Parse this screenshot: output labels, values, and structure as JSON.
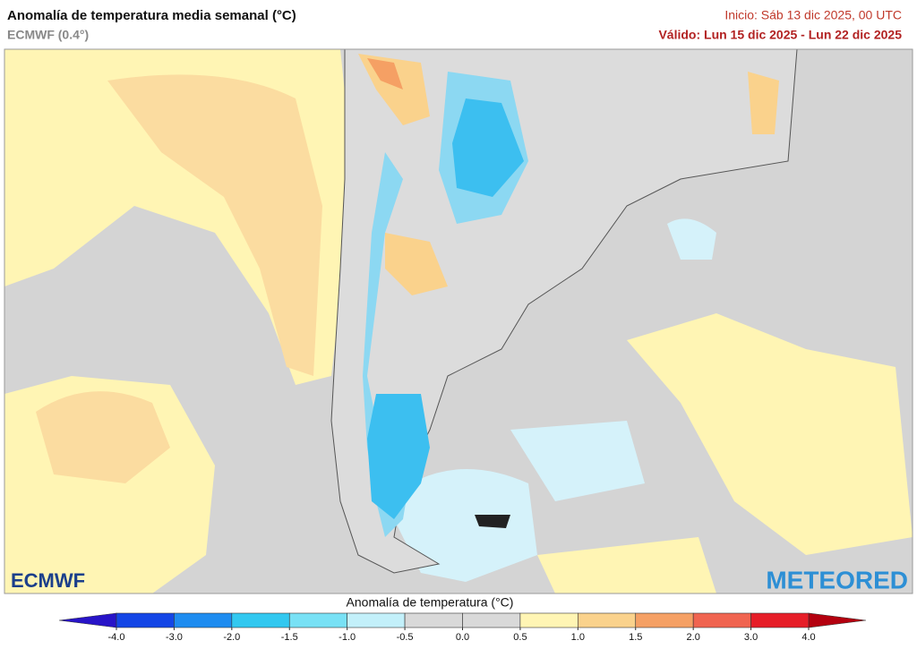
{
  "header": {
    "title": "Anomalía de temperatura media semanal (°C)",
    "subtitle": "ECMWF (0.4°)",
    "init": "Inicio: Sáb 13 dic 2025, 00 UTC",
    "valid": "Válido: Lun 15 dic 2025 - Lun 22 dic 2025"
  },
  "logos": {
    "left": "ECMWF",
    "right": "METEORED"
  },
  "colorbar": {
    "label": "Anomalía de temperatura (°C)",
    "ticks": [
      {
        "value": -4,
        "label": "-4.0"
      },
      {
        "value": -3,
        "label": "-3.0"
      },
      {
        "value": -2,
        "label": "-2.0"
      },
      {
        "value": -1.5,
        "label": "-1.5"
      },
      {
        "value": -1,
        "label": "-1.0"
      },
      {
        "value": -0.5,
        "label": "-0.5"
      },
      {
        "value": 0,
        "label": "0.0"
      },
      {
        "value": 0.5,
        "label": "0.5"
      },
      {
        "value": 1,
        "label": "1.0"
      },
      {
        "value": 1.5,
        "label": "1.5"
      },
      {
        "value": 2,
        "label": "2.0"
      },
      {
        "value": 3,
        "label": "3.0"
      },
      {
        "value": 4,
        "label": "4.0"
      }
    ],
    "colors": [
      "#1446e6",
      "#1e8cf0",
      "#32c8f0",
      "#78e1f5",
      "#c3f0fa",
      "#d9d9d9",
      "#d9d9d9",
      "#fff5b4",
      "#fad28c",
      "#f5a064",
      "#f06450",
      "#e61e28"
    ],
    "under_color": "#2814c8",
    "over_color": "#b4000f"
  }
}
